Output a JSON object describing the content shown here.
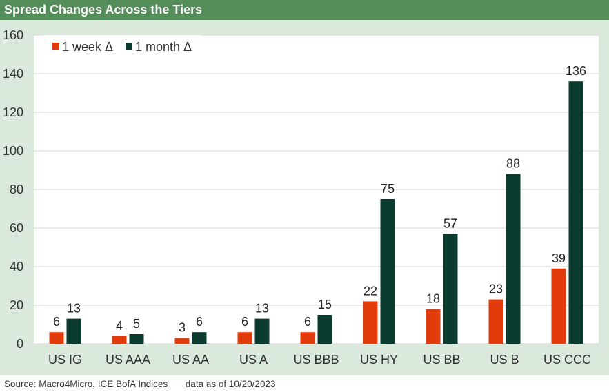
{
  "header": {
    "title": "Spread Changes Across the Tiers"
  },
  "footer": {
    "source": "Source: Macro4Micro, ICE BofA Indices",
    "asof": "data as of 10/20/2023"
  },
  "colors": {
    "week": "#e33c0c",
    "month": "#0b3b2e",
    "title_bg": "#548c5a",
    "chart_bg": "#dbe8dc"
  },
  "chart_data": {
    "type": "bar",
    "title": "Spread Changes Across the Tiers",
    "categories": [
      "US IG",
      "US AAA",
      "US AA",
      "US A",
      "US BBB",
      "US HY",
      "US BB",
      "US B",
      "US CCC"
    ],
    "series": [
      {
        "name": "1 week Δ",
        "values": [
          6,
          4,
          3,
          6,
          6,
          22,
          18,
          23,
          39
        ],
        "color": "#e33c0c"
      },
      {
        "name": "1 month Δ",
        "values": [
          13,
          5,
          6,
          13,
          15,
          75,
          57,
          88,
          136
        ],
        "color": "#0b3b2e"
      }
    ],
    "ylim": [
      0,
      160
    ],
    "yticks": [
      0,
      20,
      40,
      60,
      80,
      100,
      120,
      140,
      160
    ],
    "legend": "top-left",
    "grid": true
  }
}
